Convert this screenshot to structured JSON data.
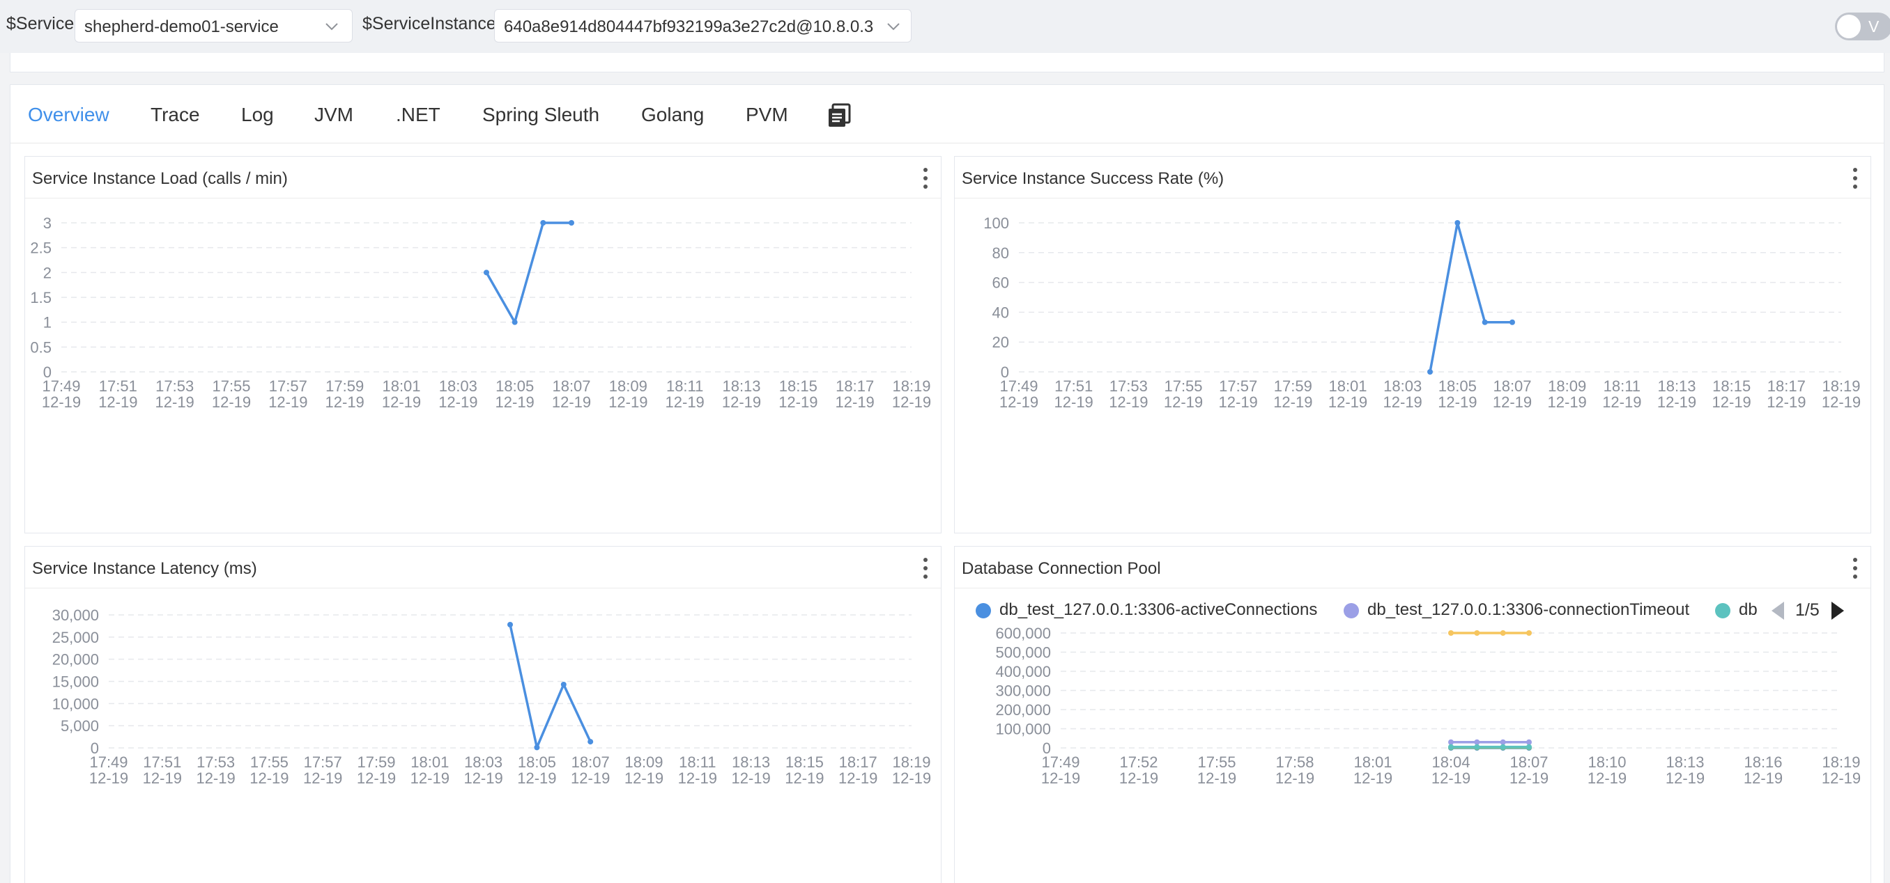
{
  "toolbar": {
    "service_label": "$Service",
    "service_value": "shepherd-demo01-service",
    "instance_label": "$ServiceInstance",
    "instance_value": "640a8e914d804447bf932199a3e27c2d@10.8.0.3",
    "toggle_label": "V"
  },
  "tabs": [
    {
      "label": "Overview",
      "active": true
    },
    {
      "label": "Trace"
    },
    {
      "label": "Log"
    },
    {
      "label": "JVM"
    },
    {
      "label": ".NET"
    },
    {
      "label": "Spring Sleuth"
    },
    {
      "label": "Golang"
    },
    {
      "label": "PVM"
    }
  ],
  "colors": {
    "accent": "#3f8fea",
    "series_blue": "#4a8fe0",
    "series_purple": "#9b9fe6",
    "series_teal": "#5cc2bf",
    "series_yellow": "#f6c55e",
    "series_green": "#8bbc6b"
  },
  "widgets": {
    "load": {
      "title": "Service Instance Load (calls / min)"
    },
    "success": {
      "title": "Service Instance Success Rate (%)"
    },
    "latency": {
      "title": "Service Instance Latency (ms)"
    },
    "pool": {
      "title": "Database Connection Pool",
      "legend": [
        {
          "label": "db_test_127.0.0.1:3306-activeConnections",
          "color": "#4a8fe0"
        },
        {
          "label": "db_test_127.0.0.1:3306-connectionTimeout",
          "color": "#9b9fe6"
        },
        {
          "label": "db",
          "color": "#5cc2bf"
        }
      ],
      "pager": "1/5"
    }
  },
  "chart_data": [
    {
      "type": "line",
      "title": "Service Instance Load (calls / min)",
      "x_ticks": [
        "17:49\n12-19",
        "17:51\n12-19",
        "17:53\n12-19",
        "17:55\n12-19",
        "17:57\n12-19",
        "17:59\n12-19",
        "18:01\n12-19",
        "18:03\n12-19",
        "18:05\n12-19",
        "18:07\n12-19",
        "18:09\n12-19",
        "18:11\n12-19",
        "18:13\n12-19",
        "18:15\n12-19",
        "18:17\n12-19",
        "18:19\n12-19"
      ],
      "y_ticks": [
        "0",
        "0.5",
        "1",
        "1.5",
        "2",
        "2.5",
        "3"
      ],
      "ylim": [
        0,
        3
      ],
      "series": [
        {
          "x": [
            "18:04",
            "18:05",
            "18:06",
            "18:07"
          ],
          "values": [
            2,
            1,
            3,
            3
          ]
        }
      ],
      "grid": true
    },
    {
      "type": "line",
      "title": "Service Instance Success Rate (%)",
      "x_ticks": [
        "17:49\n12-19",
        "17:51\n12-19",
        "17:53\n12-19",
        "17:55\n12-19",
        "17:57\n12-19",
        "17:59\n12-19",
        "18:01\n12-19",
        "18:03\n12-19",
        "18:05\n12-19",
        "18:07\n12-19",
        "18:09\n12-19",
        "18:11\n12-19",
        "18:13\n12-19",
        "18:15\n12-19",
        "18:17\n12-19",
        "18:19\n12-19"
      ],
      "y_ticks": [
        "0",
        "20",
        "40",
        "60",
        "80",
        "100"
      ],
      "ylim": [
        0,
        100
      ],
      "series": [
        {
          "x": [
            "18:04",
            "18:05",
            "18:06",
            "18:07"
          ],
          "values": [
            0,
            100,
            33.3,
            33.3
          ]
        }
      ],
      "grid": true
    },
    {
      "type": "line",
      "title": "Service Instance Latency (ms)",
      "x_ticks": [
        "17:49\n12-19",
        "17:51\n12-19",
        "17:53\n12-19",
        "17:55\n12-19",
        "17:57\n12-19",
        "17:59\n12-19",
        "18:01\n12-19",
        "18:03\n12-19",
        "18:05\n12-19",
        "18:07\n12-19",
        "18:09\n12-19",
        "18:11\n12-19",
        "18:13\n12-19",
        "18:15\n12-19",
        "18:17\n12-19",
        "18:19\n12-19"
      ],
      "y_ticks": [
        "0",
        "5,000",
        "10,000",
        "15,000",
        "20,000",
        "25,000",
        "30,000"
      ],
      "ylim": [
        0,
        30000
      ],
      "series": [
        {
          "x": [
            "18:04",
            "18:05",
            "18:06",
            "18:07"
          ],
          "values": [
            27800,
            100,
            14300,
            1400
          ]
        }
      ],
      "grid": true
    },
    {
      "type": "line",
      "title": "Database Connection Pool",
      "x_ticks": [
        "17:49\n12-19",
        "17:52\n12-19",
        "17:55\n12-19",
        "17:58\n12-19",
        "18:01\n12-19",
        "18:04\n12-19",
        "18:07\n12-19",
        "18:10\n12-19",
        "18:13\n12-19",
        "18:16\n12-19",
        "18:19\n12-19"
      ],
      "y_ticks": [
        "0",
        "100,000",
        "200,000",
        "300,000",
        "400,000",
        "500,000",
        "600,000"
      ],
      "ylim": [
        0,
        600000
      ],
      "series": [
        {
          "name": "db_test_127.0.0.1:3306-activeConnections",
          "x": [
            "18:04",
            "18:05",
            "18:06",
            "18:07"
          ],
          "values": [
            0,
            0,
            0,
            0
          ]
        },
        {
          "name": "db_test_127.0.0.1:3306-connectionTimeout",
          "x": [
            "18:04",
            "18:05",
            "18:06",
            "18:07"
          ],
          "values": [
            30000,
            30000,
            30000,
            30000
          ]
        },
        {
          "x": [
            "18:04",
            "18:05",
            "18:06",
            "18:07"
          ],
          "values": [
            600000,
            600000,
            600000,
            600000
          ]
        },
        {
          "x": [
            "18:04",
            "18:05",
            "18:06",
            "18:07"
          ],
          "values": [
            2000,
            2000,
            2000,
            2000
          ]
        },
        {
          "x": [
            "18:04",
            "18:05",
            "18:06",
            "18:07"
          ],
          "values": [
            5000,
            5000,
            5000,
            5000
          ]
        }
      ],
      "legend": "top-left",
      "grid": true
    }
  ]
}
